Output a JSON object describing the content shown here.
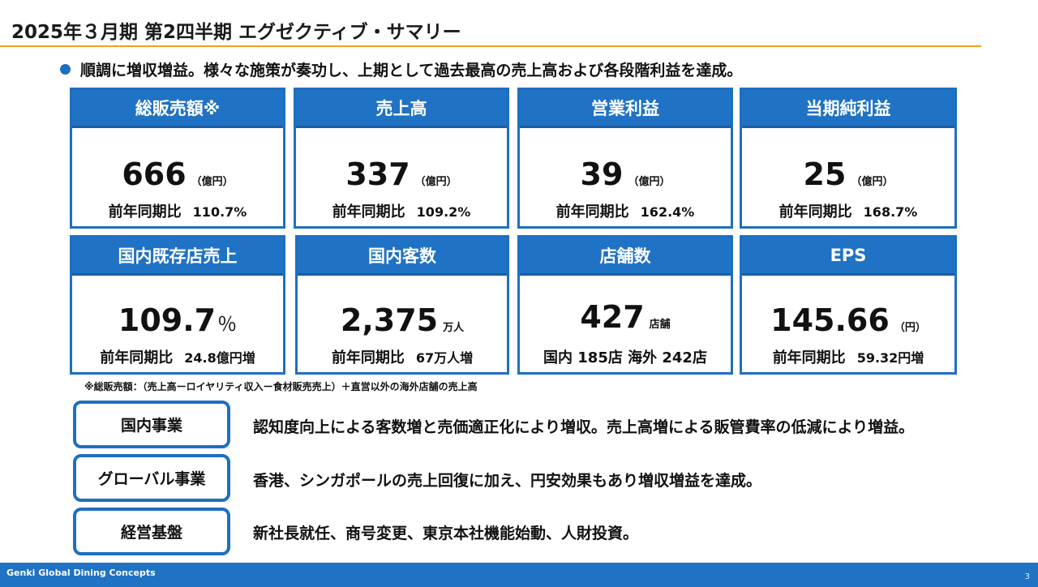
{
  "title": "2025年３月期 第2四半期 エグゼクティブ・サマリー",
  "headline": "順調に増収増益。様々な施策が奏功し、上期として過去最高の売上高および各段階利益を達成。",
  "cards": [
    {
      "label": "総販売額※",
      "value": "666",
      "unit": "（億円）",
      "sub_label": "前年同期比",
      "sub_value": "110.7%"
    },
    {
      "label": "売上高",
      "value": "337",
      "unit": "（億円）",
      "sub_label": "前年同期比",
      "sub_value": "109.2%"
    },
    {
      "label": "営業利益",
      "value": "39",
      "unit": "（億円）",
      "sub_label": "前年同期比",
      "sub_value": "162.4%"
    },
    {
      "label": "当期純利益",
      "value": "25",
      "unit": "（億円）",
      "sub_label": "前年同期比",
      "sub_value": "168.7%"
    },
    {
      "label": "国内既存店売上",
      "value": "109.7",
      "unit": "％",
      "sub_label": "前年同期比",
      "sub_value": "24.8億円増"
    },
    {
      "label": "国内客数",
      "value": "2,375",
      "unit": "万人",
      "sub_label": "前年同期比",
      "sub_value": "67万人増"
    },
    {
      "label": "店舗数",
      "value": "427",
      "unit": "店舗",
      "sub_label": "国内 185店 海外 242店",
      "sub_value": ""
    },
    {
      "label": "EPS",
      "value": "145.66",
      "unit": "（円）",
      "sub_label": "前年同期比",
      "sub_value": "59.32円増"
    }
  ],
  "footnote": "※総販売額：（売上高ーロイヤリティ収入ー食材販売売上）＋直営以外の海外店舗の売上高",
  "segments": [
    {
      "label": "国内事業",
      "text": "認知度向上による客数増と売価適正化により増収。売上高増による販管費率の低減により増益。"
    },
    {
      "label": "グローバル事業",
      "text": "香港、シンガポールの売上回復に加え、円安効果もあり増収増益を達成。"
    },
    {
      "label": "経営基盤",
      "text": "新社長就任、商号変更、東京本社機能始動、人財投資。"
    }
  ],
  "footer": {
    "brand": "Genki Global Dining Concepts",
    "page": "3"
  },
  "colors": {
    "accent": "#1f72c4",
    "rule": "#f0a020"
  }
}
